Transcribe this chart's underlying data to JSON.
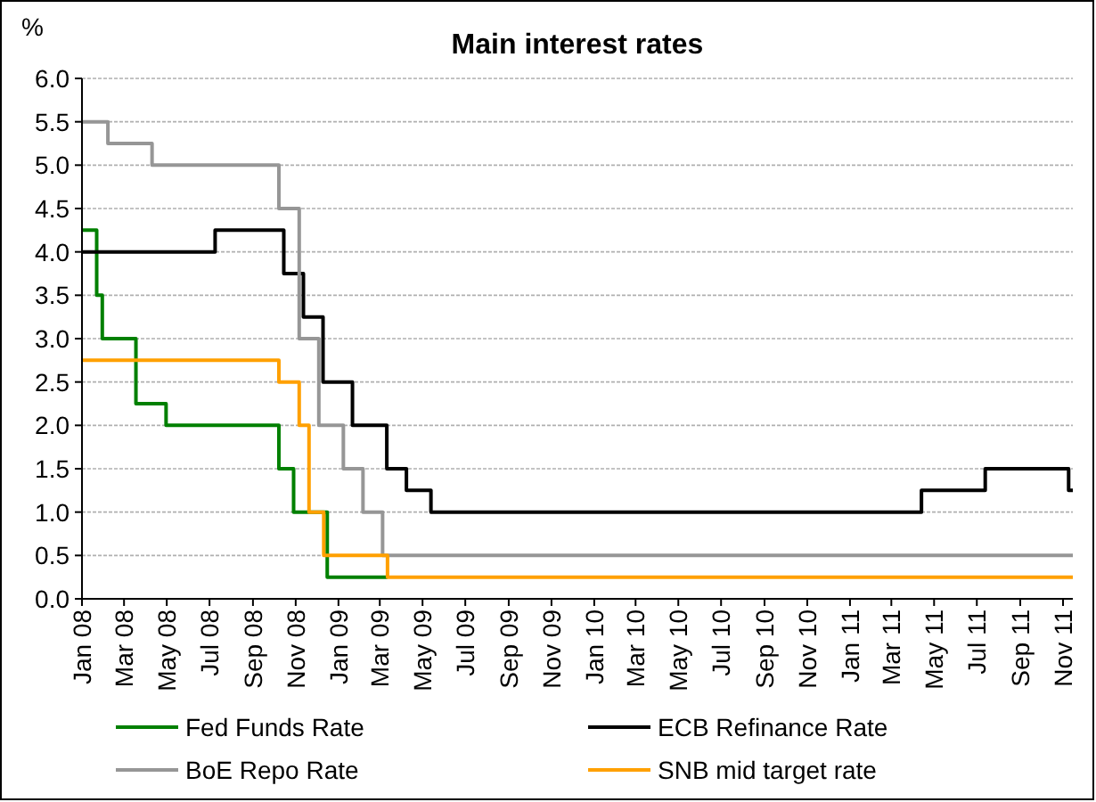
{
  "chart_data": {
    "type": "step",
    "title": "Main interest rates",
    "ylabel": "%",
    "xlim": [
      "2008-01-01",
      "2011-11-15"
    ],
    "xticks": [
      {
        "value": "2008-01",
        "label": "Jan 08"
      },
      {
        "value": "2008-03",
        "label": "Mar 08"
      },
      {
        "value": "2008-05",
        "label": "May 08"
      },
      {
        "value": "2008-07",
        "label": "Jul 08"
      },
      {
        "value": "2008-09",
        "label": "Sep 08"
      },
      {
        "value": "2008-11",
        "label": "Nov 08"
      },
      {
        "value": "2009-01",
        "label": "Jan 09"
      },
      {
        "value": "2009-03",
        "label": "Mar 09"
      },
      {
        "value": "2009-05",
        "label": "May 09"
      },
      {
        "value": "2009-07",
        "label": "Jul 09"
      },
      {
        "value": "2009-09",
        "label": "Sep 09"
      },
      {
        "value": "2009-11",
        "label": "Nov 09"
      },
      {
        "value": "2010-01",
        "label": "Jan 10"
      },
      {
        "value": "2010-03",
        "label": "Mar 10"
      },
      {
        "value": "2010-05",
        "label": "May 10"
      },
      {
        "value": "2010-07",
        "label": "Jul 10"
      },
      {
        "value": "2010-09",
        "label": "Sep 10"
      },
      {
        "value": "2010-11",
        "label": "Nov 10"
      },
      {
        "value": "2011-01",
        "label": "Jan 11"
      },
      {
        "value": "2011-03",
        "label": "Mar 11"
      },
      {
        "value": "2011-05",
        "label": "May 11"
      },
      {
        "value": "2011-07",
        "label": "Jul 11"
      },
      {
        "value": "2011-09",
        "label": "Sep 11"
      },
      {
        "value": "2011-11",
        "label": "Nov 11"
      }
    ],
    "ylim": [
      0,
      6
    ],
    "yticks": [
      {
        "value": 0,
        "label": "0.0"
      },
      0.5,
      {
        "value": 1,
        "label": "1.0"
      },
      1.5,
      {
        "value": 2,
        "label": "2.0"
      },
      2.5,
      {
        "value": 3,
        "label": "3.0"
      },
      3.5,
      {
        "value": 4,
        "label": "4.0"
      },
      4.5,
      {
        "value": 5,
        "label": "5.0"
      },
      5.5,
      {
        "value": 6,
        "label": "6.0"
      }
    ],
    "grid": "y",
    "legend": "bottom",
    "marker": "none",
    "line_style": "solid",
    "series": [
      {
        "name": "Fed Funds Rate",
        "color": "#008000",
        "x": [
          "2008-01-01",
          "2008-01-22",
          "2008-01-30",
          "2008-03-18",
          "2008-04-30",
          "2008-10-08",
          "2008-10-29",
          "2008-12-16",
          "2009-03-12"
        ],
        "values": [
          4.25,
          3.5,
          3.0,
          2.25,
          2.0,
          1.5,
          1.0,
          0.25,
          0.25
        ]
      },
      {
        "name": "ECB Refinance Rate",
        "color": "#000000",
        "x": [
          "2008-01-01",
          "2008-07-09",
          "2008-10-15",
          "2008-11-12",
          "2008-12-10",
          "2009-01-21",
          "2009-03-11",
          "2009-04-08",
          "2009-05-13",
          "2011-04-13",
          "2011-07-13",
          "2011-11-09",
          "2011-11-15"
        ],
        "values": [
          4.0,
          4.25,
          3.75,
          3.25,
          2.5,
          2.0,
          1.5,
          1.25,
          1.0,
          1.25,
          1.5,
          1.25,
          1.25
        ]
      },
      {
        "name": "BoE Repo Rate",
        "color": "#969696",
        "x": [
          "2008-01-01",
          "2008-02-07",
          "2008-04-10",
          "2008-10-08",
          "2008-11-06",
          "2008-12-04",
          "2009-01-08",
          "2009-02-05",
          "2009-03-05",
          "2011-11-15"
        ],
        "values": [
          5.5,
          5.25,
          5.0,
          4.5,
          3.0,
          2.0,
          1.5,
          1.0,
          0.5,
          0.5
        ]
      },
      {
        "name": "SNB mid target rate",
        "color": "#ffa000",
        "x": [
          "2008-01-01",
          "2008-10-08",
          "2008-11-06",
          "2008-11-20",
          "2008-12-11",
          "2009-03-12",
          "2011-11-15"
        ],
        "values": [
          2.75,
          2.5,
          2.0,
          1.0,
          0.5,
          0.25,
          0.25
        ]
      }
    ]
  }
}
